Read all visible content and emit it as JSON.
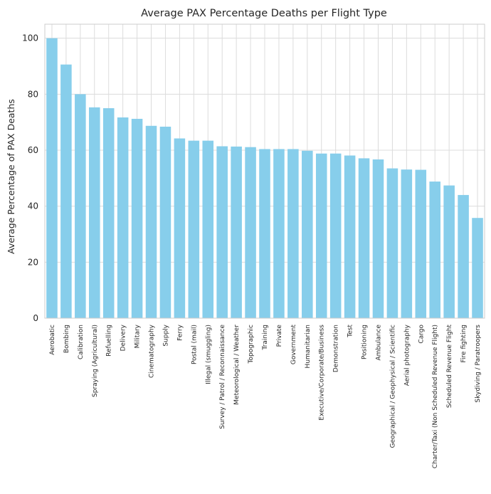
{
  "chart_data": {
    "type": "bar",
    "title": "Average PAX Percentage Deaths per Flight Type",
    "xlabel": "",
    "ylabel": "Average Percentage of PAX Deaths",
    "ylim": [
      0,
      105
    ],
    "yticks": [
      0,
      20,
      40,
      60,
      80,
      100
    ],
    "grid": true,
    "bar_color": "#87ceeb",
    "categories": [
      "Aerobatic",
      "Bombing",
      "Calibration",
      "Spraying (Agricultural)",
      "Refuelling",
      "Delivery",
      "Military",
      "Cinematography",
      "Supply",
      "Ferry",
      "Postal (mail)",
      "Illegal (smuggling)",
      "Survey / Patrol / Reconnaissance",
      "Meteorological / Weather",
      "Topographic",
      "Training",
      "Private",
      "Government",
      "Humanitarian",
      "Executive/Corporate/Business",
      "Demonstration",
      "Test",
      "Positioning",
      "Ambulance",
      "Geographical / Geophysical / Scientific",
      "Aerial photography",
      "Cargo",
      "Charter/Taxi (Non Scheduled Revenue Flight)",
      "Scheduled Revenue Flight",
      "Fire fighting",
      "Skydiving / Paratroopers"
    ],
    "values": [
      100,
      90.6,
      80,
      75.3,
      75,
      71.7,
      71.2,
      68.7,
      68.4,
      64.2,
      63.4,
      63.4,
      61.4,
      61.3,
      61.1,
      60.4,
      60.4,
      60.4,
      59.8,
      58.8,
      58.8,
      58.1,
      57.1,
      56.7,
      53.5,
      53.1,
      53.0,
      48.8,
      47.4,
      44.0,
      35.8
    ]
  }
}
